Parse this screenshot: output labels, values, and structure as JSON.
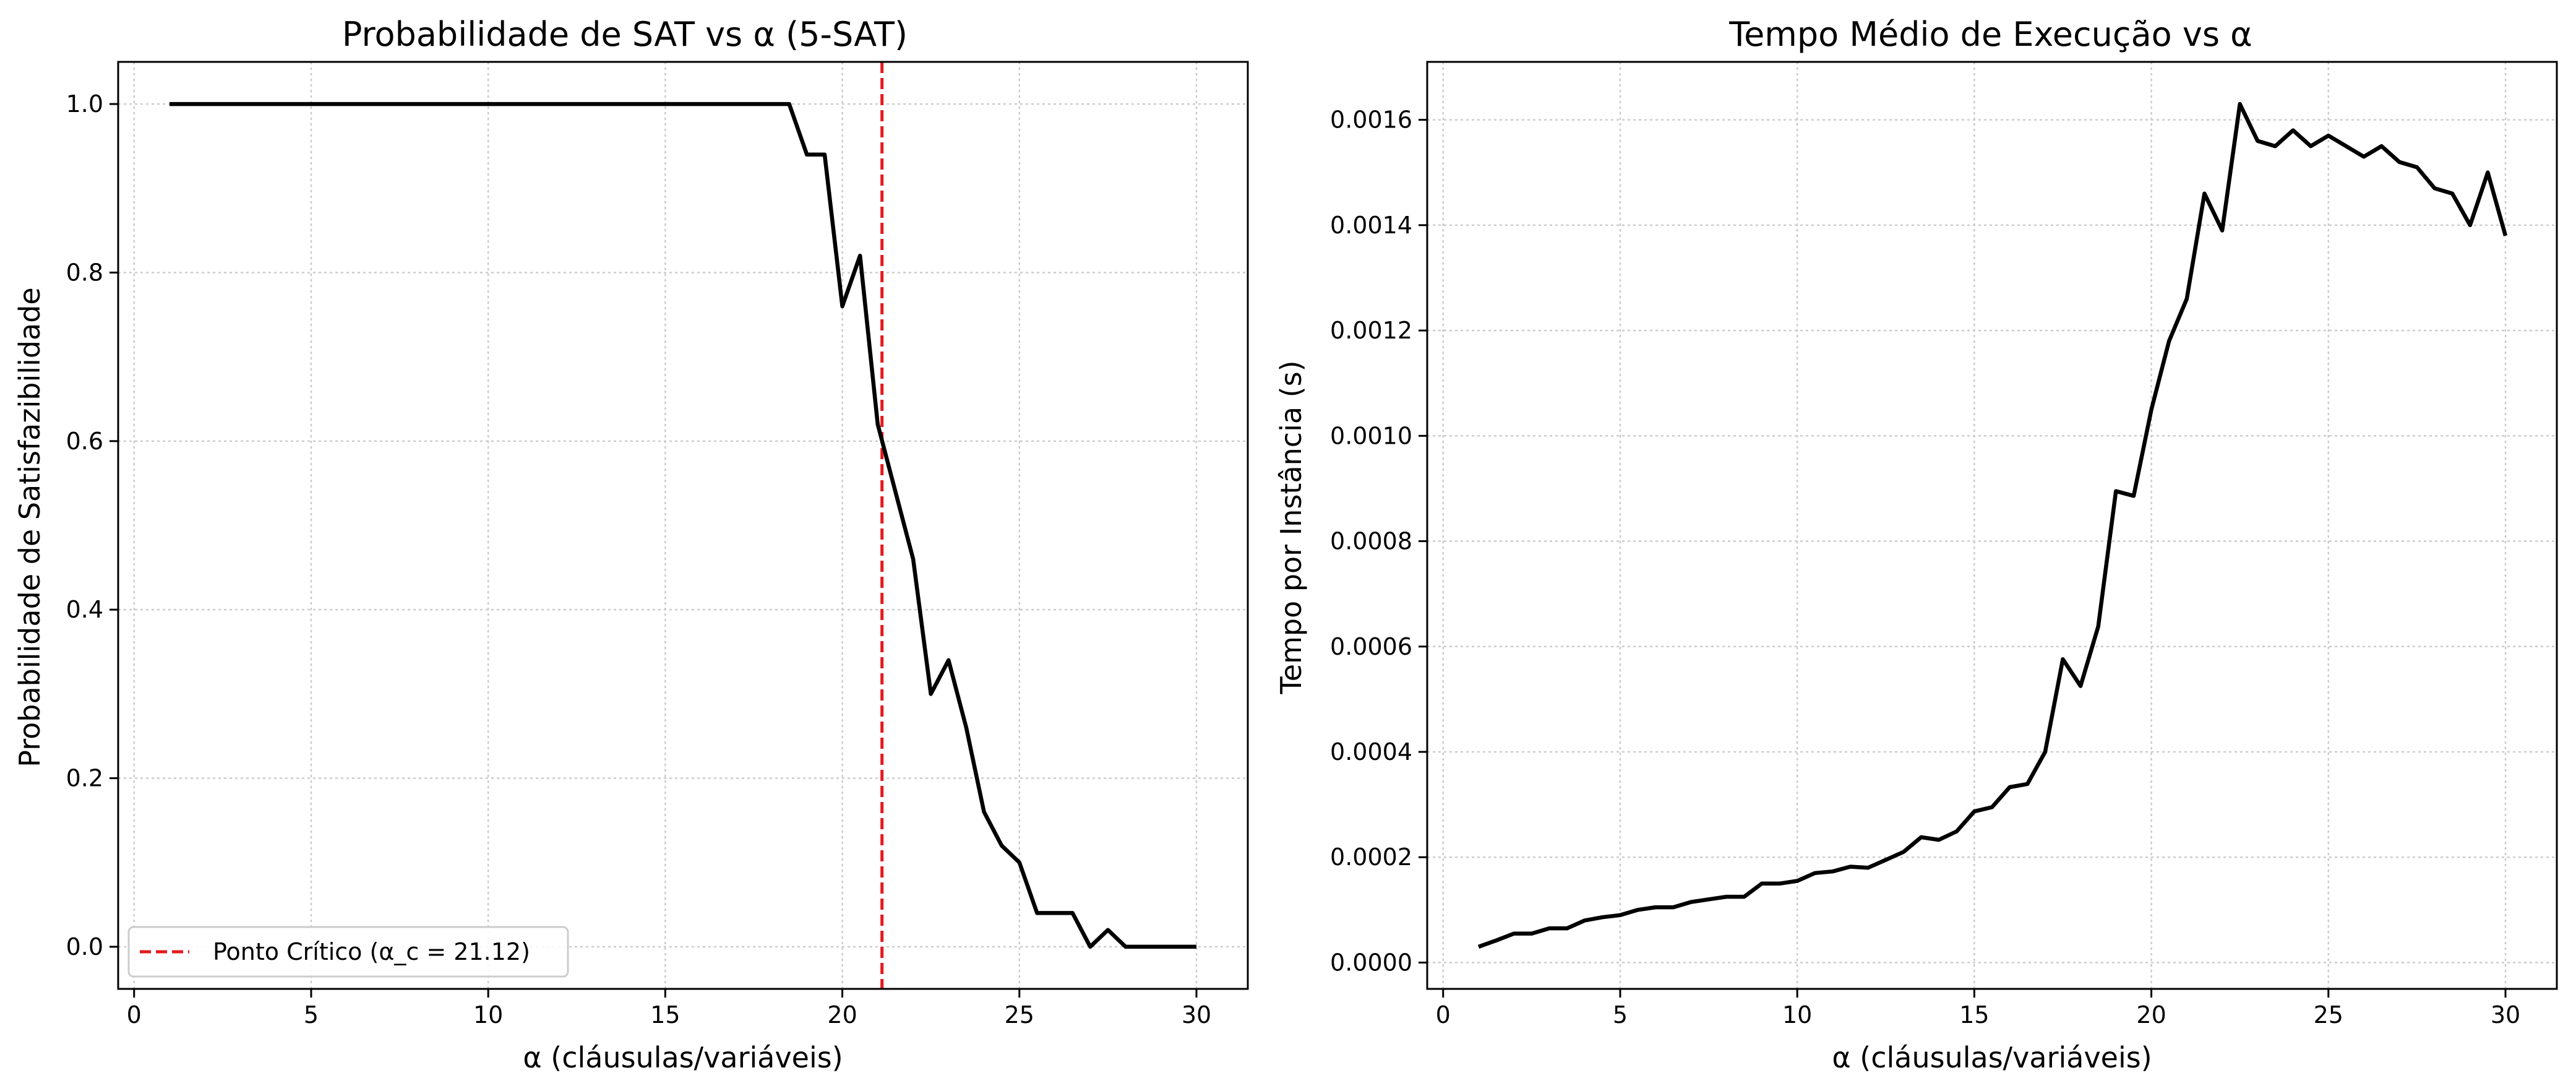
{
  "chart_data": [
    {
      "type": "line",
      "title": "Probabilidade de SAT vs α (5-SAT)",
      "xlabel": "α (cláusulas/variáveis)",
      "ylabel": "Probabilidade de Satisfazibilidade",
      "xlim": [
        -0.45,
        31.45
      ],
      "ylim": [
        -0.05,
        1.05
      ],
      "xticks": [
        0,
        5,
        10,
        15,
        20,
        25,
        30
      ],
      "xtick_labels": [
        "0",
        "5",
        "10",
        "15",
        "20",
        "25",
        "30"
      ],
      "yticks": [
        0.0,
        0.2,
        0.4,
        0.6,
        0.8,
        1.0
      ],
      "ytick_labels": [
        "0.0",
        "0.2",
        "0.4",
        "0.6",
        "0.8",
        "1.0"
      ],
      "grid": true,
      "legend_position": "lower-left",
      "series": [
        {
          "color": "#000000",
          "x": [
            1.0,
            1.5,
            2.0,
            2.5,
            3.0,
            3.5,
            4.0,
            4.5,
            5.0,
            5.5,
            6.0,
            6.5,
            7.0,
            7.5,
            8.0,
            8.5,
            9.0,
            9.5,
            10.0,
            10.5,
            11.0,
            11.5,
            12.0,
            12.5,
            13.0,
            13.5,
            14.0,
            14.5,
            15.0,
            15.5,
            16.0,
            16.5,
            17.0,
            17.5,
            18.0,
            18.5,
            19.0,
            19.5,
            20.0,
            20.5,
            21.0,
            21.5,
            22.0,
            22.5,
            23.0,
            23.5,
            24.0,
            24.5,
            25.0,
            25.5,
            26.0,
            26.5,
            27.0,
            27.5,
            28.0,
            28.5,
            29.0,
            29.5,
            30.0
          ],
          "y": [
            1.0,
            1.0,
            1.0,
            1.0,
            1.0,
            1.0,
            1.0,
            1.0,
            1.0,
            1.0,
            1.0,
            1.0,
            1.0,
            1.0,
            1.0,
            1.0,
            1.0,
            1.0,
            1.0,
            1.0,
            1.0,
            1.0,
            1.0,
            1.0,
            1.0,
            1.0,
            1.0,
            1.0,
            1.0,
            1.0,
            1.0,
            1.0,
            1.0,
            1.0,
            1.0,
            1.0,
            0.94,
            0.94,
            0.76,
            0.82,
            0.62,
            0.54,
            0.46,
            0.3,
            0.34,
            0.26,
            0.16,
            0.12,
            0.1,
            0.04,
            0.04,
            0.04,
            0.0,
            0.02,
            0.0,
            0.0,
            0.0,
            0.0,
            0.0
          ]
        }
      ],
      "reference_line": {
        "orientation": "vertical",
        "x": 21.12,
        "color": "#e31a1c",
        "style": "dashed",
        "label": "Ponto Crítico (α_c = 21.12)"
      }
    },
    {
      "type": "line",
      "title": "Tempo Médio de Execução vs α",
      "xlabel": "α (cláusulas/variáveis)",
      "ylabel": "Tempo por Instância (s)",
      "xlim": [
        -0.45,
        31.45
      ],
      "ylim": [
        -5e-05,
        0.00171
      ],
      "xticks": [
        0,
        5,
        10,
        15,
        20,
        25,
        30
      ],
      "xtick_labels": [
        "0",
        "5",
        "10",
        "15",
        "20",
        "25",
        "30"
      ],
      "yticks": [
        0.0,
        0.0002,
        0.0004,
        0.0006,
        0.0008,
        0.001,
        0.0012,
        0.0014,
        0.0016
      ],
      "ytick_labels": [
        "0.0000",
        "0.0002",
        "0.0004",
        "0.0006",
        "0.0008",
        "0.0010",
        "0.0012",
        "0.0014",
        "0.0016"
      ],
      "grid": true,
      "series": [
        {
          "color": "#000000",
          "x": [
            1.0,
            1.5,
            2.0,
            2.5,
            3.0,
            3.5,
            4.0,
            4.5,
            5.0,
            5.5,
            6.0,
            6.5,
            7.0,
            7.5,
            8.0,
            8.5,
            9.0,
            9.5,
            10.0,
            10.5,
            11.0,
            11.5,
            12.0,
            12.5,
            13.0,
            13.5,
            14.0,
            14.5,
            15.0,
            15.5,
            16.0,
            16.5,
            17.0,
            17.5,
            18.0,
            18.5,
            19.0,
            19.5,
            20.0,
            20.5,
            21.0,
            21.5,
            22.0,
            22.5,
            23.0,
            23.5,
            24.0,
            24.5,
            25.0,
            25.5,
            26.0,
            26.5,
            27.0,
            27.5,
            28.0,
            28.5,
            29.0,
            29.5,
            30.0
          ],
          "y": [
            3e-05,
            4.2e-05,
            5.5e-05,
            5.5e-05,
            6.5e-05,
            6.5e-05,
            8e-05,
            8.6e-05,
            9e-05,
            0.0001,
            0.000105,
            0.000105,
            0.000115,
            0.00012,
            0.000125,
            0.000125,
            0.00015,
            0.00015,
            0.000155,
            0.00017,
            0.000173,
            0.000182,
            0.00018,
            0.000195,
            0.00021,
            0.000238,
            0.000233,
            0.000249,
            0.000287,
            0.000295,
            0.000333,
            0.000339,
            0.0004,
            0.000576,
            0.000525,
            0.000638,
            0.000895,
            0.000886,
            0.00105,
            0.00118,
            0.00126,
            0.00146,
            0.00139,
            0.00163,
            0.00156,
            0.00155,
            0.00158,
            0.00155,
            0.00157,
            0.00155,
            0.00153,
            0.00155,
            0.00152,
            0.00151,
            0.00147,
            0.00146,
            0.0014,
            0.0015,
            0.00138
          ]
        }
      ]
    }
  ]
}
